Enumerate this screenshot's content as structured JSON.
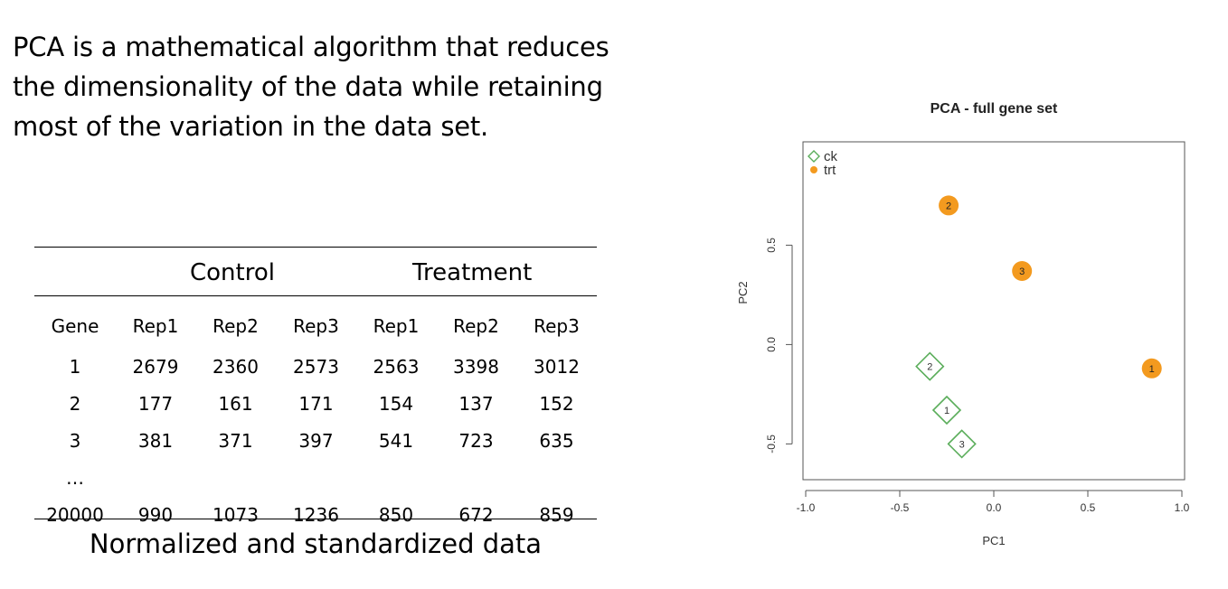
{
  "intro": {
    "line1": "PCA is a mathematical algorithm that reduces",
    "line2": "the dimensionality of the data while retaining",
    "line3": "most of the variation in the data set."
  },
  "table": {
    "groups": [
      "Control",
      "Treatment"
    ],
    "columns": [
      "Gene",
      "Rep1",
      "Rep2",
      "Rep3",
      "Rep1",
      "Rep2",
      "Rep3"
    ],
    "rows": [
      [
        "1",
        "2679",
        "2360",
        "2573",
        "2563",
        "3398",
        "3012"
      ],
      [
        "2",
        "177",
        "161",
        "171",
        "154",
        "137",
        "152"
      ],
      [
        "3",
        "381",
        "371",
        "397",
        "541",
        "723",
        "635"
      ],
      [
        "…",
        "",
        "",
        "",
        "",
        "",
        ""
      ],
      [
        "20000",
        "990",
        "1073",
        "1236",
        "850",
        "672",
        "859"
      ]
    ],
    "caption": "Normalized and standardized data"
  },
  "chart_data": {
    "type": "scatter",
    "title": "PCA - full gene set",
    "xlabel": "PC1",
    "ylabel": "PC2",
    "xlim": [
      -1.0,
      1.0
    ],
    "ylim": [
      -0.68,
      1.02
    ],
    "xticks": [
      -1.0,
      -0.5,
      0.0,
      0.5,
      1.0
    ],
    "xtick_labels": [
      "-1.0",
      "-0.5",
      "0.0",
      "0.5",
      "1.0"
    ],
    "yticks": [
      -0.5,
      0.0,
      0.5
    ],
    "ytick_labels": [
      "-0.5",
      "0.0",
      "0.5"
    ],
    "legend_position": "top-left",
    "series": [
      {
        "name": "ck",
        "marker": "diamond-open",
        "color": "#5aad5a",
        "points": [
          {
            "label": "2",
            "x": -0.34,
            "y": -0.11
          },
          {
            "label": "1",
            "x": -0.25,
            "y": -0.33
          },
          {
            "label": "3",
            "x": -0.17,
            "y": -0.5
          }
        ]
      },
      {
        "name": "trt",
        "marker": "circle-filled",
        "color": "#f39a1f",
        "points": [
          {
            "label": "2",
            "x": -0.24,
            "y": 0.7
          },
          {
            "label": "3",
            "x": 0.15,
            "y": 0.37
          },
          {
            "label": "1",
            "x": 0.84,
            "y": -0.12
          }
        ]
      }
    ]
  }
}
